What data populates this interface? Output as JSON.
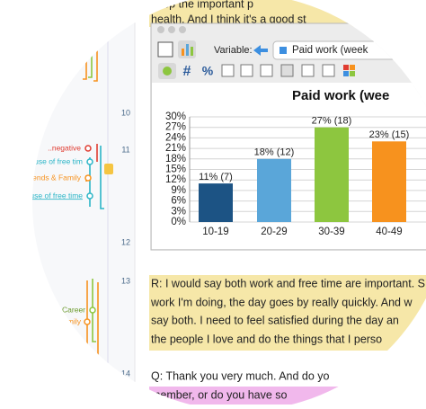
{
  "transcript": {
    "top_lines": [
      "keep the important p",
      "health. And I think it's a good st"
    ],
    "line_numbers": [
      "10",
      "11",
      "12",
      "13",
      "14"
    ],
    "paragraph_13": [
      "R: I would say both work and free time are important. S",
      "work I'm doing, the day goes by really quickly. And w",
      "say both. I need to feel satisfied during the day an",
      "the people I love and do the things that I perso"
    ],
    "paragraph_14": [
      "Q: Thank you very much. And do yo",
      "member, or do you have so"
    ]
  },
  "codes": [
    "..negative",
    "Better use of free tim",
    "..Friends & Family",
    "Better use of free time",
    "Pace & Career",
    "ds & Family"
  ],
  "window": {
    "variable_label": "Variable:",
    "variable_value": "Paid work (week",
    "hash_icon": "#",
    "percent_icon": "%"
  },
  "chart_data": {
    "type": "bar",
    "title": "Paid work (wee",
    "categories": [
      "10-19",
      "20-29",
      "30-39",
      "40-49"
    ],
    "values": [
      11,
      18,
      27,
      23
    ],
    "value_labels": [
      "11% (7)",
      "18% (12)",
      "27% (18)",
      "23% (15)"
    ],
    "colors": [
      "#1c5384",
      "#5aa6d9",
      "#8dc63f",
      "#f7921e"
    ],
    "ylim": [
      0,
      30
    ],
    "yticks": [
      {
        "value": 0,
        "label": "0%"
      },
      {
        "value": 3,
        "label": "3%"
      },
      {
        "value": 6,
        "label": "6%"
      },
      {
        "value": 9,
        "label": "9%"
      },
      {
        "value": 12,
        "label": "12%"
      },
      {
        "value": 15,
        "label": "15%"
      },
      {
        "value": 18,
        "label": "18%"
      },
      {
        "value": 21,
        "label": "21%"
      },
      {
        "value": 24,
        "label": "24%"
      },
      {
        "value": 27,
        "label": "27%"
      },
      {
        "value": 30,
        "label": "30%"
      }
    ],
    "grid": true
  }
}
